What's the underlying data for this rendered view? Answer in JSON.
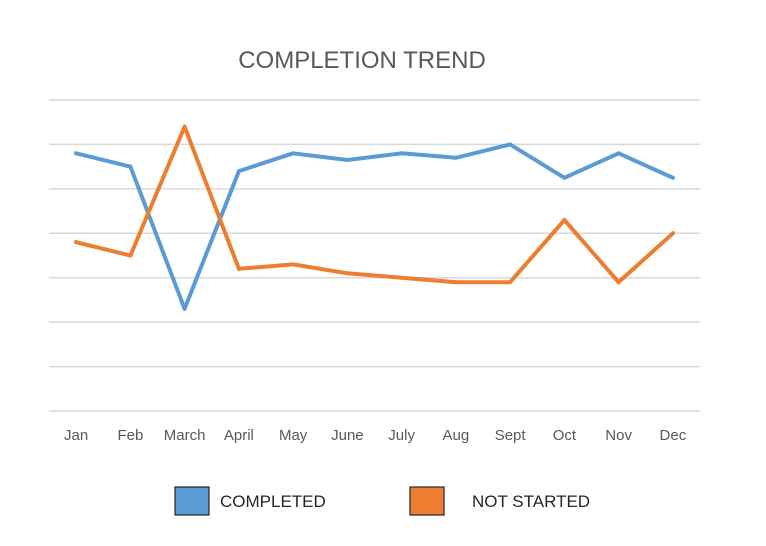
{
  "chart_data": {
    "type": "line",
    "title": "COMPLETION TREND",
    "xlabel": "",
    "ylabel": "",
    "categories": [
      "Jan",
      "Feb",
      "March",
      "April",
      "May",
      "June",
      "July",
      "Aug",
      "Sept",
      "Oct",
      "Nov",
      "Dec"
    ],
    "ylim": [
      0,
      7
    ],
    "y_axis_labels_shown": false,
    "grid": true,
    "legend": "bottom",
    "series": [
      {
        "name": "COMPLETED",
        "color": "#5b9bd5",
        "values": [
          5.8,
          5.5,
          2.3,
          5.4,
          5.8,
          5.65,
          5.8,
          5.7,
          6.0,
          5.25,
          5.8,
          5.25
        ]
      },
      {
        "name": "NOT STARTED",
        "color": "#ed7d31",
        "values": [
          3.8,
          3.5,
          6.4,
          3.2,
          3.3,
          3.1,
          3.0,
          2.9,
          2.9,
          4.3,
          2.9,
          4.0
        ]
      }
    ]
  }
}
